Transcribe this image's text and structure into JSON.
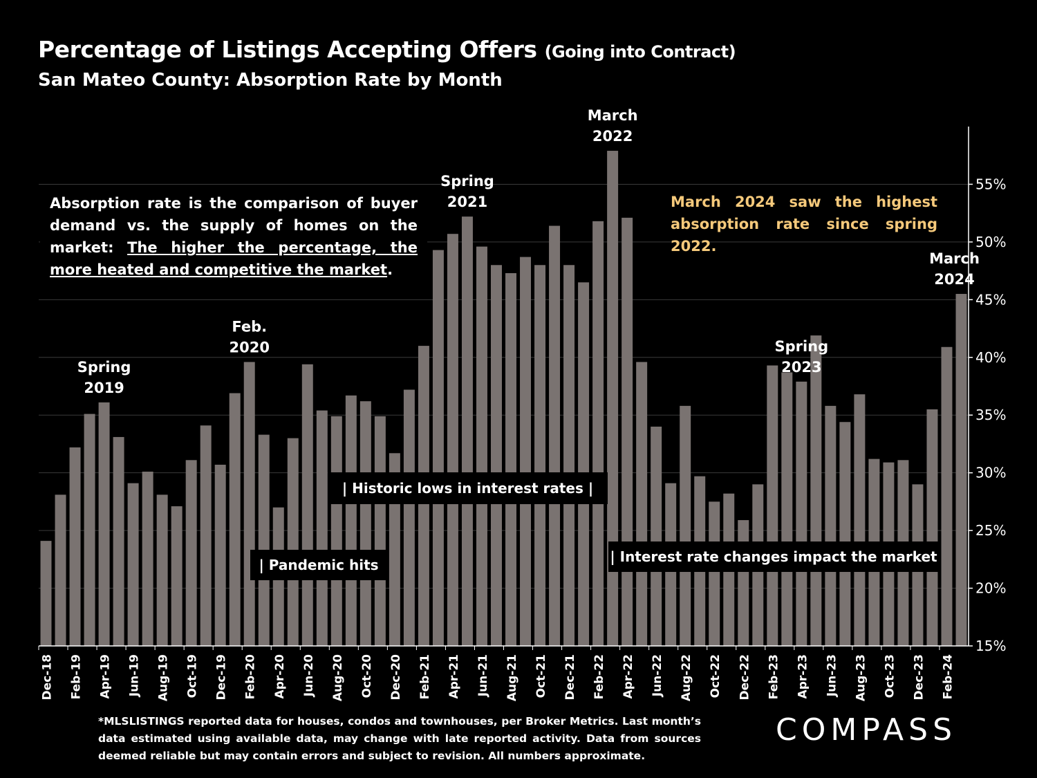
{
  "header": {
    "title_main": "Percentage of Listings Accepting Offers",
    "title_suffix": "(Going into Contract)",
    "subtitle": "San Mateo County:  Absorption Rate by Month"
  },
  "notes": {
    "definition_plain": "Absorption rate is the comparison of buyer demand vs. the supply of homes on the market: ",
    "definition_underlined": "The higher the percentage, the more heated and competitive the market",
    "definition_end": ".",
    "highlight": "March 2024 saw the highest absorption rate since spring 2022.",
    "historic_lows": "|    Historic lows in interest rates    |",
    "pandemic": "| Pandemic hits",
    "rate_changes": "| Interest rate changes impact the market"
  },
  "footnote": "*MLSLISTINGS reported data for houses, condos and townhouses, per Broker Metrics. Last month’s data estimated using available data, may change with late reported activity. Data from sources deemed reliable but may contain errors and subject to revision. All numbers approximate.",
  "logo": "COMPASS",
  "colors": {
    "bar": "#7a7371",
    "grid": "#3a3a3a",
    "axis": "#ffffff",
    "highlight": "#f5c97b"
  },
  "chart_data": {
    "type": "bar",
    "title": "Percentage of Listings Accepting Offers (Going into Contract)",
    "ylim": [
      15,
      60
    ],
    "yticks": [
      15,
      20,
      25,
      30,
      35,
      40,
      45,
      50,
      55
    ],
    "ytick_suffix": "%",
    "y_axis_position": "right",
    "x_tick_labels": [
      "Dec-18",
      "Feb-19",
      "Apr-19",
      "Jun-19",
      "Aug-19",
      "Oct-19",
      "Dec-19",
      "Feb-20",
      "Apr-20",
      "Jun-20",
      "Aug-20",
      "Oct-20",
      "Dec-20",
      "Feb-21",
      "Apr-21",
      "Jun-21",
      "Aug-21",
      "Oct-21",
      "Dec-21",
      "Feb-22",
      "Apr-22",
      "Jun-22",
      "Aug-22",
      "Oct-22",
      "Dec-22",
      "Feb-23",
      "Apr-23",
      "Jun-23",
      "Aug-23",
      "Oct-23",
      "Dec-23",
      "Feb-24"
    ],
    "categories": [
      "Dec-18",
      "Jan-19",
      "Feb-19",
      "Mar-19",
      "Apr-19",
      "May-19",
      "Jun-19",
      "Jul-19",
      "Aug-19",
      "Sep-19",
      "Oct-19",
      "Nov-19",
      "Dec-19",
      "Jan-20",
      "Feb-20",
      "Mar-20",
      "Apr-20",
      "May-20",
      "Jun-20",
      "Jul-20",
      "Aug-20",
      "Sep-20",
      "Oct-20",
      "Nov-20",
      "Dec-20",
      "Jan-21",
      "Feb-21",
      "Mar-21",
      "Apr-21",
      "May-21",
      "Jun-21",
      "Jul-21",
      "Aug-21",
      "Sep-21",
      "Oct-21",
      "Nov-21",
      "Dec-21",
      "Jan-22",
      "Feb-22",
      "Mar-22",
      "Apr-22",
      "May-22",
      "Jun-22",
      "Jul-22",
      "Aug-22",
      "Sep-22",
      "Oct-22",
      "Nov-22",
      "Dec-22",
      "Jan-23",
      "Feb-23",
      "Mar-23",
      "Apr-23",
      "May-23",
      "Jun-23",
      "Jul-23",
      "Aug-23",
      "Sep-23",
      "Oct-23",
      "Nov-23",
      "Dec-23",
      "Jan-24",
      "Feb-24",
      "Mar-24"
    ],
    "values": [
      24.1,
      28.1,
      32.2,
      35.1,
      36.1,
      33.1,
      29.1,
      30.1,
      28.1,
      27.1,
      31.1,
      34.1,
      30.7,
      36.9,
      39.6,
      33.3,
      27.0,
      33.0,
      39.4,
      35.4,
      34.9,
      36.7,
      36.2,
      34.9,
      31.7,
      37.2,
      41.0,
      49.3,
      50.7,
      52.2,
      49.6,
      48.0,
      47.3,
      48.7,
      48.0,
      51.4,
      48.0,
      46.5,
      51.8,
      57.9,
      52.1,
      39.6,
      34.0,
      29.1,
      35.8,
      29.7,
      27.5,
      28.2,
      25.9,
      29.0,
      39.3,
      38.7,
      37.9,
      41.9,
      35.8,
      34.4,
      36.8,
      31.2,
      30.9,
      31.1,
      29.0,
      35.5,
      40.9,
      45.5
    ],
    "annotations": [
      {
        "index": 4,
        "lines": [
          "Spring",
          "2019"
        ]
      },
      {
        "index": 14,
        "lines": [
          "Feb.",
          "2020"
        ]
      },
      {
        "index": 29,
        "lines": [
          "Spring",
          "2021"
        ]
      },
      {
        "index": 39,
        "lines": [
          "March",
          "2022"
        ]
      },
      {
        "index": 52,
        "lines": [
          "Spring",
          "2023"
        ]
      },
      {
        "index": 63,
        "lines": [
          "March",
          "2024"
        ]
      }
    ]
  }
}
